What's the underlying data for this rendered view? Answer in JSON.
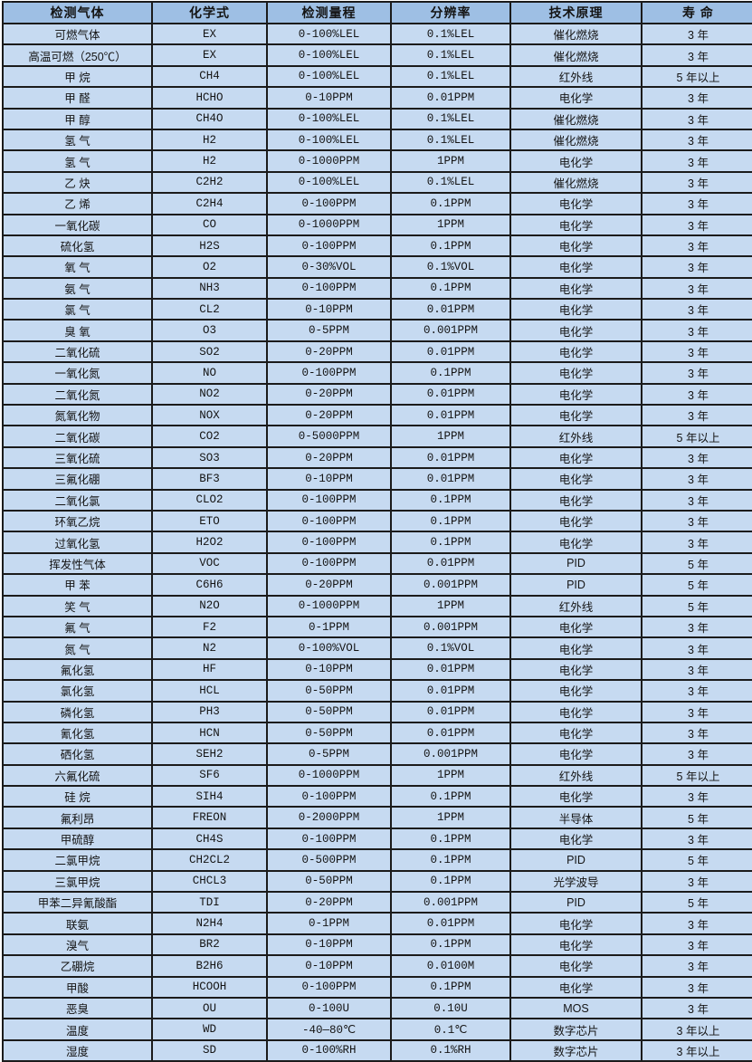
{
  "table": {
    "headers": [
      "检测气体",
      "化学式",
      "检测量程",
      "分辨率",
      "技术原理",
      "寿 命"
    ],
    "rows": [
      [
        "可燃气体",
        "EX",
        "0-100%LEL",
        "0.1%LEL",
        "催化燃烧",
        "3 年"
      ],
      [
        "高温可燃（250℃）",
        "EX",
        "0-100%LEL",
        "0.1%LEL",
        "催化燃烧",
        "3 年"
      ],
      [
        "甲 烷",
        "CH4",
        "0-100%LEL",
        "0.1%LEL",
        "红外线",
        "5 年以上"
      ],
      [
        "甲 醛",
        "HCHO",
        "0-10PPM",
        "0.01PPM",
        "电化学",
        "3 年"
      ],
      [
        "甲 醇",
        "CH4O",
        "0-100%LEL",
        "0.1%LEL",
        "催化燃烧",
        "3 年"
      ],
      [
        "氢 气",
        "H2",
        "0-100%LEL",
        "0.1%LEL",
        "催化燃烧",
        "3 年"
      ],
      [
        "氢 气",
        "H2",
        "0-1000PPM",
        "1PPM",
        "电化学",
        "3 年"
      ],
      [
        "乙 炔",
        "C2H2",
        "0-100%LEL",
        "0.1%LEL",
        "催化燃烧",
        "3 年"
      ],
      [
        "乙 烯",
        "C2H4",
        "0-100PPM",
        "0.1PPM",
        "电化学",
        "3 年"
      ],
      [
        "一氧化碳",
        "CO",
        "0-1000PPM",
        "1PPM",
        "电化学",
        "3 年"
      ],
      [
        "硫化氢",
        "H2S",
        "0-100PPM",
        "0.1PPM",
        "电化学",
        "3 年"
      ],
      [
        "氧 气",
        "O2",
        "0-30%VOL",
        "0.1%VOL",
        "电化学",
        "3 年"
      ],
      [
        "氨 气",
        "NH3",
        "0-100PPM",
        "0.1PPM",
        "电化学",
        "3 年"
      ],
      [
        "氯 气",
        "CL2",
        "0-10PPM",
        "0.01PPM",
        "电化学",
        "3 年"
      ],
      [
        "臭 氧",
        "O3",
        "0-5PPM",
        "0.001PPM",
        "电化学",
        "3 年"
      ],
      [
        "二氧化硫",
        "SO2",
        "0-20PPM",
        "0.01PPM",
        "电化学",
        "3 年"
      ],
      [
        "一氧化氮",
        "NO",
        "0-100PPM",
        "0.1PPM",
        "电化学",
        "3 年"
      ],
      [
        "二氧化氮",
        "NO2",
        "0-20PPM",
        "0.01PPM",
        "电化学",
        "3 年"
      ],
      [
        "氮氧化物",
        "NOX",
        "0-20PPM",
        "0.01PPM",
        "电化学",
        "3 年"
      ],
      [
        "二氧化碳",
        "CO2",
        "0-5000PPM",
        "1PPM",
        "红外线",
        "5 年以上"
      ],
      [
        "三氧化硫",
        "SO3",
        "0-20PPM",
        "0.01PPM",
        "电化学",
        "3 年"
      ],
      [
        "三氟化硼",
        "BF3",
        "0-10PPM",
        "0.01PPM",
        "电化学",
        "3 年"
      ],
      [
        "二氧化氯",
        "CLO2",
        "0-100PPM",
        "0.1PPM",
        "电化学",
        "3 年"
      ],
      [
        "环氧乙烷",
        "ETO",
        "0-100PPM",
        "0.1PPM",
        "电化学",
        "3 年"
      ],
      [
        "过氧化氢",
        "H2O2",
        "0-100PPM",
        "0.1PPM",
        "电化学",
        "3 年"
      ],
      [
        "挥发性气体",
        "VOC",
        "0-100PPM",
        "0.01PPM",
        "PID",
        "5 年"
      ],
      [
        "甲 苯",
        "C6H6",
        "0-20PPM",
        "0.001PPM",
        "PID",
        "5 年"
      ],
      [
        "笑 气",
        "N2O",
        "0-1000PPM",
        "1PPM",
        "红外线",
        "5 年"
      ],
      [
        "氟 气",
        "F2",
        "0-1PPM",
        "0.001PPM",
        "电化学",
        "3 年"
      ],
      [
        "氮 气",
        "N2",
        "0-100%VOL",
        "0.1%VOL",
        "电化学",
        "3 年"
      ],
      [
        "氟化氢",
        "HF",
        "0-10PPM",
        "0.01PPM",
        "电化学",
        "3 年"
      ],
      [
        "氯化氢",
        "HCL",
        "0-50PPM",
        "0.01PPM",
        "电化学",
        "3 年"
      ],
      [
        "磷化氢",
        "PH3",
        "0-50PPM",
        "0.01PPM",
        "电化学",
        "3 年"
      ],
      [
        "氰化氢",
        "HCN",
        "0-50PPM",
        "0.01PPM",
        "电化学",
        "3 年"
      ],
      [
        "硒化氢",
        "SEH2",
        "0-5PPM",
        "0.001PPM",
        "电化学",
        "3 年"
      ],
      [
        "六氟化硫",
        "SF6",
        "0-1000PPM",
        "1PPM",
        "红外线",
        "5 年以上"
      ],
      [
        "硅 烷",
        "SIH4",
        "0-100PPM",
        "0.1PPM",
        "电化学",
        "3 年"
      ],
      [
        "氟利昂",
        "FREON",
        "0-2000PPM",
        "1PPM",
        "半导体",
        "5 年"
      ],
      [
        "甲硫醇",
        "CH4S",
        "0-100PPM",
        "0.1PPM",
        "电化学",
        "3 年"
      ],
      [
        "二氯甲烷",
        "CH2CL2",
        "0-500PPM",
        "0.1PPM",
        "PID",
        "5 年"
      ],
      [
        "三氯甲烷",
        "CHCL3",
        "0-50PPM",
        "0.1PPM",
        "光学波导",
        "3 年"
      ],
      [
        "甲苯二异氰酸酯",
        "TDI",
        "0-20PPM",
        "0.001PPM",
        "PID",
        "5 年"
      ],
      [
        "联氨",
        "N2H4",
        "0-1PPM",
        "0.01PPM",
        "电化学",
        "3 年"
      ],
      [
        "溴气",
        "BR2",
        "0-10PPM",
        "0.1PPM",
        "电化学",
        "3 年"
      ],
      [
        "乙硼烷",
        "B2H6",
        "0-10PPM",
        "0.0100M",
        "电化学",
        "3 年"
      ],
      [
        "甲酸",
        "HCOOH",
        "0-100PPM",
        "0.1PPM",
        "电化学",
        "3 年"
      ],
      [
        "恶臭",
        "OU",
        "0-100U",
        "0.10U",
        "MOS",
        "3 年"
      ],
      [
        "温度",
        "WD",
        "-40—80℃",
        "0.1℃",
        "数字芯片",
        "3 年以上"
      ],
      [
        "湿度",
        "SD",
        "0-100%RH",
        "0.1%RH",
        "数字芯片",
        "3 年以上"
      ]
    ]
  },
  "colors": {
    "header_bg": "#9ebfe4",
    "row_bg": "#c6daf1",
    "border": "#1b1b1b",
    "text": "#141414",
    "page_bg": "#ffffff"
  }
}
